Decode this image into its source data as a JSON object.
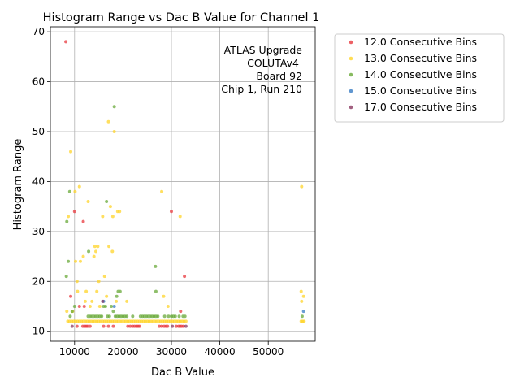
{
  "chart_data": {
    "type": "scatter",
    "title": "Histogram Range vs Dac B Value for Channel 1",
    "xlabel": "Dac B Value",
    "ylabel": "Histogram Range",
    "xlim": [
      5000,
      59700
    ],
    "ylim": [
      8,
      71
    ],
    "xticks": [
      10000,
      20000,
      30000,
      40000,
      50000
    ],
    "xtick_labels": [
      "10000",
      "20000",
      "30000",
      "40000",
      "50000"
    ],
    "yticks": [
      10,
      20,
      30,
      40,
      50,
      60,
      70
    ],
    "ytick_labels": [
      "10",
      "20",
      "30",
      "40",
      "50",
      "60",
      "70"
    ],
    "grid": true,
    "legend_position": "outside-right",
    "annotation": [
      "ATLAS Upgrade",
      "COLUTAv4",
      "Board 92",
      "Chip 1, Run 210"
    ],
    "series": [
      {
        "name": "12.0 Consecutive Bins",
        "color": "#e8393f",
        "points": [
          [
            8200,
            68
          ],
          [
            9200,
            17
          ],
          [
            10000,
            34
          ],
          [
            11800,
            32
          ],
          [
            11000,
            15
          ],
          [
            12000,
            15
          ],
          [
            10500,
            11
          ],
          [
            11700,
            11
          ],
          [
            12100,
            11
          ],
          [
            12400,
            11
          ],
          [
            12700,
            11
          ],
          [
            13200,
            11
          ],
          [
            16000,
            11
          ],
          [
            17000,
            11
          ],
          [
            18000,
            11
          ],
          [
            21000,
            11
          ],
          [
            21500,
            11
          ],
          [
            22000,
            11
          ],
          [
            22400,
            11
          ],
          [
            22800,
            11
          ],
          [
            23100,
            11
          ],
          [
            23400,
            11
          ],
          [
            27500,
            11
          ],
          [
            28000,
            11
          ],
          [
            28500,
            11
          ],
          [
            28900,
            11
          ],
          [
            29200,
            11
          ],
          [
            30000,
            34
          ],
          [
            31000,
            11
          ],
          [
            31500,
            11
          ],
          [
            31800,
            11
          ],
          [
            32100,
            11
          ],
          [
            32500,
            11
          ],
          [
            31900,
            14
          ],
          [
            32700,
            21
          ]
        ]
      },
      {
        "name": "13.0 Consecutive Bins",
        "color": "#ffd42a",
        "points": [
          [
            8400,
            14
          ],
          [
            8700,
            33
          ],
          [
            9200,
            46
          ],
          [
            9600,
            14
          ],
          [
            10100,
            38
          ],
          [
            10200,
            24
          ],
          [
            10500,
            20
          ],
          [
            10600,
            18
          ],
          [
            11000,
            39
          ],
          [
            11200,
            24
          ],
          [
            11800,
            25
          ],
          [
            12200,
            16
          ],
          [
            12400,
            18
          ],
          [
            12800,
            36
          ],
          [
            13200,
            15
          ],
          [
            13600,
            16
          ],
          [
            14000,
            25
          ],
          [
            14200,
            27
          ],
          [
            14400,
            26
          ],
          [
            14600,
            18
          ],
          [
            14800,
            27
          ],
          [
            15000,
            20
          ],
          [
            15200,
            15
          ],
          [
            15800,
            33
          ],
          [
            16200,
            21
          ],
          [
            16600,
            17
          ],
          [
            17000,
            52
          ],
          [
            17100,
            27
          ],
          [
            17400,
            35
          ],
          [
            17800,
            26
          ],
          [
            17900,
            33
          ],
          [
            18200,
            50
          ],
          [
            18600,
            16
          ],
          [
            18900,
            34
          ],
          [
            19300,
            34
          ],
          [
            20800,
            16
          ],
          [
            28000,
            38
          ],
          [
            28400,
            17
          ],
          [
            29300,
            15
          ],
          [
            31800,
            33
          ],
          [
            56900,
            39
          ],
          [
            56800,
            18
          ],
          [
            57300,
            17
          ],
          [
            56900,
            16
          ],
          [
            8600,
            12
          ],
          [
            9000,
            12
          ],
          [
            9400,
            12
          ],
          [
            9800,
            12
          ],
          [
            10200,
            12
          ],
          [
            10600,
            12
          ],
          [
            11000,
            12
          ],
          [
            11400,
            12
          ],
          [
            11800,
            12
          ],
          [
            12200,
            12
          ],
          [
            12600,
            12
          ],
          [
            13000,
            12
          ],
          [
            13400,
            12
          ],
          [
            13800,
            12
          ],
          [
            14200,
            12
          ],
          [
            14600,
            12
          ],
          [
            15000,
            12
          ],
          [
            15400,
            12
          ],
          [
            15800,
            12
          ],
          [
            16200,
            12
          ],
          [
            16600,
            12
          ],
          [
            17000,
            12
          ],
          [
            17400,
            12
          ],
          [
            17800,
            12
          ],
          [
            18200,
            12
          ],
          [
            18600,
            12
          ],
          [
            19000,
            12
          ],
          [
            19400,
            12
          ],
          [
            19800,
            12
          ],
          [
            20200,
            12
          ],
          [
            20600,
            12
          ],
          [
            21000,
            12
          ],
          [
            21400,
            12
          ],
          [
            21800,
            12
          ],
          [
            22200,
            12
          ],
          [
            22600,
            12
          ],
          [
            23000,
            12
          ],
          [
            23400,
            12
          ],
          [
            23800,
            12
          ],
          [
            24200,
            12
          ],
          [
            24600,
            12
          ],
          [
            25000,
            12
          ],
          [
            25400,
            12
          ],
          [
            25800,
            12
          ],
          [
            26200,
            12
          ],
          [
            26600,
            12
          ],
          [
            27000,
            12
          ],
          [
            27400,
            12
          ],
          [
            27800,
            12
          ],
          [
            28200,
            12
          ],
          [
            28600,
            12
          ],
          [
            29000,
            12
          ],
          [
            29400,
            12
          ],
          [
            29800,
            12
          ],
          [
            30200,
            12
          ],
          [
            30600,
            12
          ],
          [
            31000,
            12
          ],
          [
            31400,
            12
          ],
          [
            31800,
            12
          ],
          [
            32200,
            12
          ],
          [
            32600,
            12
          ],
          [
            33000,
            12
          ],
          [
            56800,
            12
          ],
          [
            57100,
            12
          ],
          [
            57400,
            12
          ]
        ]
      },
      {
        "name": "14.0 Consecutive Bins",
        "color": "#6aaa3a",
        "points": [
          [
            8300,
            21
          ],
          [
            8400,
            32
          ],
          [
            8700,
            24
          ],
          [
            9000,
            38
          ],
          [
            12900,
            26
          ],
          [
            16600,
            36
          ],
          [
            18200,
            55
          ],
          [
            18700,
            17
          ],
          [
            19000,
            18
          ],
          [
            19400,
            18
          ],
          [
            26700,
            23
          ],
          [
            26800,
            18
          ],
          [
            9100,
            13
          ],
          [
            9500,
            14
          ],
          [
            10000,
            15
          ],
          [
            12800,
            13
          ],
          [
            13200,
            13
          ],
          [
            13600,
            13
          ],
          [
            14000,
            13
          ],
          [
            14400,
            13
          ],
          [
            14800,
            13
          ],
          [
            15200,
            13
          ],
          [
            15600,
            13
          ],
          [
            16000,
            15
          ],
          [
            16400,
            15
          ],
          [
            16800,
            13
          ],
          [
            17200,
            13
          ],
          [
            17600,
            15
          ],
          [
            18000,
            14
          ],
          [
            18400,
            13
          ],
          [
            18800,
            13
          ],
          [
            19200,
            13
          ],
          [
            19600,
            13
          ],
          [
            20000,
            13
          ],
          [
            20400,
            13
          ],
          [
            20800,
            13
          ],
          [
            22000,
            13
          ],
          [
            23600,
            13
          ],
          [
            24000,
            13
          ],
          [
            24400,
            13
          ],
          [
            24800,
            13
          ],
          [
            25200,
            13
          ],
          [
            25600,
            13
          ],
          [
            26000,
            13
          ],
          [
            26400,
            13
          ],
          [
            26800,
            13
          ],
          [
            27200,
            13
          ],
          [
            28600,
            13
          ],
          [
            29400,
            13
          ],
          [
            30000,
            13
          ],
          [
            30400,
            13
          ],
          [
            30800,
            13
          ],
          [
            31600,
            13
          ],
          [
            32400,
            13
          ],
          [
            32800,
            13
          ],
          [
            57000,
            13
          ]
        ]
      },
      {
        "name": "15.0 Consecutive Bins",
        "color": "#3a7dc4",
        "points": [
          [
            57300,
            14
          ],
          [
            16000,
            16
          ],
          [
            18200,
            15
          ]
        ]
      },
      {
        "name": "17.0 Consecutive Bins",
        "color": "#8b3a62",
        "points": [
          [
            9500,
            11
          ],
          [
            15800,
            16
          ],
          [
            30200,
            11
          ],
          [
            33000,
            11
          ]
        ]
      }
    ]
  }
}
